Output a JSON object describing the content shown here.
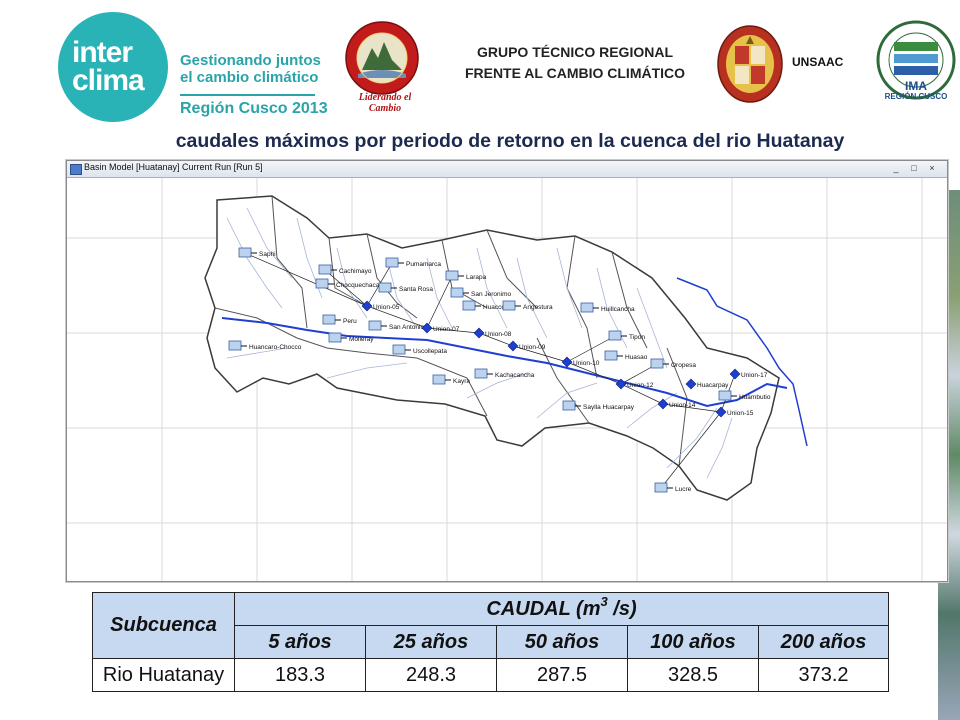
{
  "header": {
    "interclima": {
      "line1": "inter",
      "line2": "clima",
      "tagline1": "Gestionando juntos",
      "tagline2": "el cambio climático",
      "region": "Región Cusco 2013"
    },
    "gobierno": {
      "motto": "Liderando el Cambio",
      "ring_text": "GOBIERNO REGIONAL CUSCO"
    },
    "title_line1": "GRUPO TÉCNICO REGIONAL",
    "title_line2": "FRENTE AL CAMBIO CLIMÁTICO",
    "unsaac": "UNSAAC",
    "ima": {
      "label": "IMA",
      "sublabel": "REGIÓN CUSCO",
      "ring_text": "INSTITUTO DE MANEJO DE AGUA Y MEDIO AMBIENTE"
    }
  },
  "slide_title": "caudales máximos por periodo de retorno en la cuenca del rio Huatanay",
  "window": {
    "title": "Basin Model [Huatanay]  Current Run [Run 5]",
    "minimize": "_",
    "maximize": "□",
    "close": "×"
  },
  "basin_labels": {
    "saphi": "Saphi",
    "cachimayo": "Cachimayo",
    "chocquechaca": "Chocquechaca",
    "pumamarca": "Pumamarca",
    "santa_rosa": "Santa Rosa",
    "larapa": "Larapa",
    "union05": "Union-05",
    "san_jeronimo": "San Jeronimo",
    "peru": "Peru",
    "san_antonio": "San Antonio",
    "union07": "Union-07",
    "huaccoto": "Huaccoto",
    "angostura": "Angostura",
    "huillcancha": "Huillcancha",
    "huancaro_chocco": "Huancaro-Chocco",
    "molleray": "Molleray",
    "uscollepata": "Uscollepata",
    "union08": "Union-08",
    "union09": "Union-09",
    "tipon": "Tipon",
    "huasao": "Huasao",
    "union10": "Union-10",
    "oropesa": "Oropesa",
    "kayra": "Kayra",
    "kachacancha": "Kachacancha",
    "union12": "Union-12",
    "huambutio": "Huambutio",
    "huacarpay": "Huacarpay",
    "union17": "Union-17",
    "saylla": "Saylla Huacarpay",
    "union14": "Union-14",
    "union15": "Union-15",
    "lucre": "Lucre"
  },
  "table": {
    "subcuenca_header": "Subcuenca",
    "caudal_header": "CAUDAL (m",
    "caudal_exp": "3",
    "caudal_unit": " /s)",
    "periods": [
      "5 años",
      "25 años",
      "50 años",
      "100 años",
      "200 años"
    ],
    "rows": [
      {
        "name": "Rio Huatanay",
        "values": [
          "183.3",
          "248.3",
          "287.5",
          "328.5",
          "373.2"
        ]
      }
    ]
  },
  "colors": {
    "accent": "#2ab3b7",
    "table_header": "#c6d9f1",
    "river": "#1f3fd1",
    "basin_outline": "#3a3a3a"
  }
}
